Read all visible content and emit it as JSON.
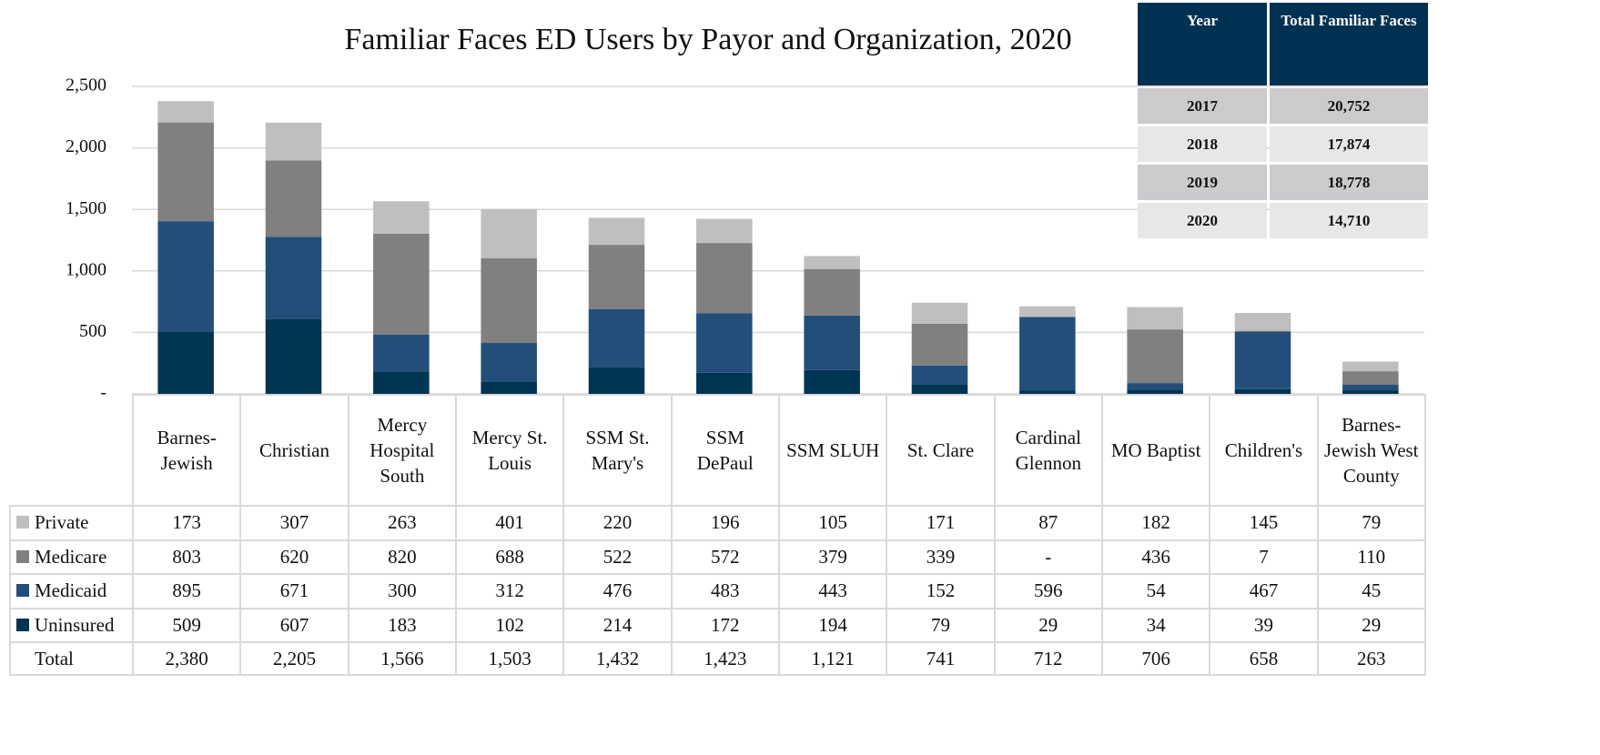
{
  "chart_data": {
    "type": "bar",
    "stacked": true,
    "title": "Familiar Faces ED Users by Payor and Organization, 2020",
    "categories": [
      "Barnes-Jewish",
      "Christian",
      "Mercy Hospital South",
      "Mercy St. Louis",
      "SSM St. Mary's",
      "SSM DePaul",
      "SSM SLUH",
      "St. Clare",
      "Cardinal Glennon",
      "MO Baptist",
      "Children's",
      "Barnes-Jewish West County"
    ],
    "series": [
      {
        "name": "Uninsured",
        "color": "#003453",
        "values": [
          509,
          607,
          183,
          102,
          214,
          172,
          194,
          79,
          29,
          34,
          39,
          29
        ]
      },
      {
        "name": "Medicaid",
        "color": "#234e79",
        "values": [
          895,
          671,
          300,
          312,
          476,
          483,
          443,
          152,
          596,
          54,
          467,
          45
        ]
      },
      {
        "name": "Medicare",
        "color": "#808080",
        "values": [
          803,
          620,
          820,
          688,
          522,
          572,
          379,
          339,
          null,
          436,
          7,
          110
        ],
        "value_labels": [
          "803",
          "620",
          "820",
          "688",
          "522",
          "572",
          "379",
          "339",
          "-",
          "436",
          "7",
          "110"
        ]
      },
      {
        "name": "Private",
        "color": "#bfbfbf",
        "values": [
          173,
          307,
          263,
          401,
          220,
          196,
          105,
          171,
          87,
          182,
          145,
          79
        ]
      }
    ],
    "totals": {
      "name": "Total",
      "values": [
        2380,
        2205,
        1566,
        1503,
        1432,
        1423,
        1121,
        741,
        712,
        706,
        658,
        263
      ],
      "value_labels": [
        "2,380",
        "2,205",
        "1,566",
        "1,503",
        "1,432",
        "1,423",
        "1,121",
        "741",
        "712",
        "706",
        "658",
        "263"
      ]
    },
    "ylim": [
      0,
      2500
    ],
    "yticks": [
      {
        "value": 0,
        "label": "-"
      },
      {
        "value": 500,
        "label": "500"
      },
      {
        "value": 1000,
        "label": "1,000"
      },
      {
        "value": 1500,
        "label": "1,500"
      },
      {
        "value": 2000,
        "label": "2,000"
      },
      {
        "value": 2500,
        "label": "2,500"
      }
    ],
    "grid": true
  },
  "summary_table": {
    "columns": [
      "Year",
      "Total Familiar Faces"
    ],
    "rows": [
      [
        "2017",
        "20,752"
      ],
      [
        "2018",
        "17,874"
      ],
      [
        "2019",
        "18,778"
      ],
      [
        "2020",
        "14,710"
      ]
    ]
  }
}
